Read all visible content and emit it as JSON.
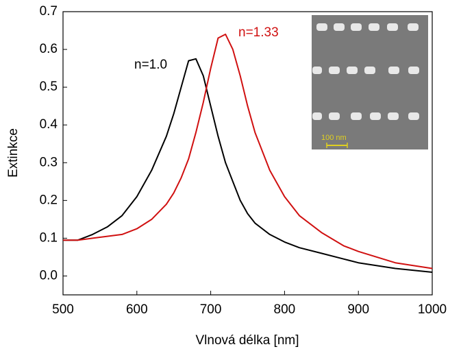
{
  "chart_data": {
    "type": "line",
    "x_label": "Vlnová délka [nm]",
    "y_label": "Extinkce",
    "x": [
      500,
      520,
      540,
      560,
      580,
      600,
      620,
      640,
      650,
      660,
      670,
      680,
      690,
      700,
      710,
      720,
      730,
      740,
      750,
      760,
      780,
      800,
      820,
      850,
      880,
      900,
      950,
      1000
    ],
    "series": [
      {
        "name": "n=1.0",
        "color": "#000000",
        "values": [
          0.095,
          0.095,
          0.11,
          0.13,
          0.16,
          0.21,
          0.28,
          0.37,
          0.43,
          0.5,
          0.57,
          0.575,
          0.53,
          0.45,
          0.37,
          0.3,
          0.25,
          0.2,
          0.165,
          0.14,
          0.11,
          0.09,
          0.075,
          0.06,
          0.045,
          0.035,
          0.02,
          0.01
        ]
      },
      {
        "name": "n=1.33",
        "color": "#d01010",
        "values": [
          0.095,
          0.095,
          0.1,
          0.105,
          0.11,
          0.125,
          0.15,
          0.19,
          0.22,
          0.26,
          0.31,
          0.38,
          0.46,
          0.55,
          0.63,
          0.64,
          0.6,
          0.53,
          0.45,
          0.38,
          0.28,
          0.21,
          0.16,
          0.115,
          0.08,
          0.065,
          0.035,
          0.02
        ]
      }
    ],
    "xlim": [
      500,
      1000
    ],
    "xticks": [
      500,
      600,
      700,
      800,
      900,
      1000
    ],
    "ylim": [
      -0.05,
      0.7
    ],
    "yticks": [
      {
        "value": 0,
        "label": "0.0"
      },
      0.1,
      0.2,
      0.3,
      0.4,
      0.5,
      0.6,
      0.7
    ],
    "inset_scale_label": "100 nm"
  }
}
